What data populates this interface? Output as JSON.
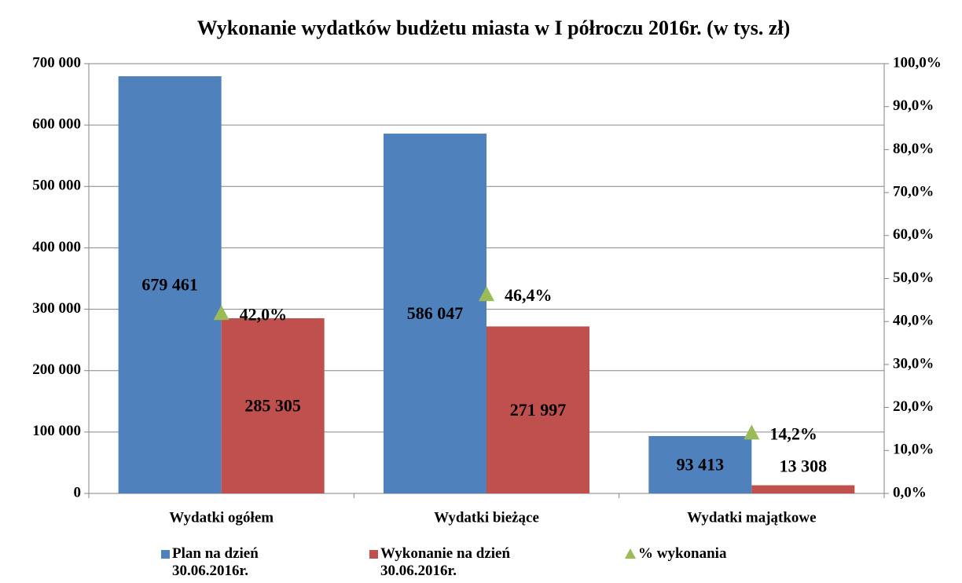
{
  "chart_data": {
    "type": "bar",
    "title": "Wykonanie wydatków budżetu miasta w I półroczu 2016r. (w tys. zł)",
    "categories": [
      "Wydatki ogółem",
      "Wydatki bieżące",
      "Wydatki majątkowe"
    ],
    "series": [
      {
        "name": "Plan na dzień 30.06.2016r.",
        "color": "#4f81bd",
        "values": [
          679461,
          586047,
          93413
        ],
        "value_labels": [
          "679 461",
          "586 047",
          "93 413"
        ]
      },
      {
        "name": "Wykonanie na dzień 30.06.2016r.",
        "color": "#c0504d",
        "values": [
          285305,
          271997,
          13308
        ],
        "value_labels": [
          "285 305",
          "271 997",
          "13 308"
        ]
      },
      {
        "name": "% wykonania",
        "color": "#9bbb59",
        "axis": "y2",
        "type": "scatter",
        "values": [
          42.0,
          46.4,
          14.2
        ],
        "value_labels": [
          "42,0%",
          "46,4%",
          "14,2%"
        ]
      }
    ],
    "ylim": [
      0,
      700000
    ],
    "yticks": [
      0,
      {
        "value": 100000,
        "label": "100 000"
      },
      {
        "value": 200000,
        "label": "200 000"
      },
      {
        "value": 300000,
        "label": "300 000"
      },
      {
        "value": 400000,
        "label": "400 000"
      },
      {
        "value": 500000,
        "label": "500 000"
      },
      {
        "value": 600000,
        "label": "600 000"
      },
      {
        "value": 700000,
        "label": "700 000"
      }
    ],
    "y2lim": [
      0,
      100
    ],
    "y2ticks": [
      {
        "value": 0,
        "label": "0,0%"
      },
      {
        "value": 10,
        "label": "10,0%"
      },
      {
        "value": 20,
        "label": "20,0%"
      },
      {
        "value": 30,
        "label": "30,0%"
      },
      {
        "value": 40,
        "label": "40,0%"
      },
      {
        "value": 50,
        "label": "50,0%"
      },
      {
        "value": 60,
        "label": "60,0%"
      },
      {
        "value": 70,
        "label": "70,0%"
      },
      {
        "value": 80,
        "label": "80,0%"
      },
      {
        "value": 90,
        "label": "90,0%"
      },
      {
        "value": 100,
        "label": "100,0%"
      }
    ],
    "grid": true,
    "legend": "bottom"
  }
}
